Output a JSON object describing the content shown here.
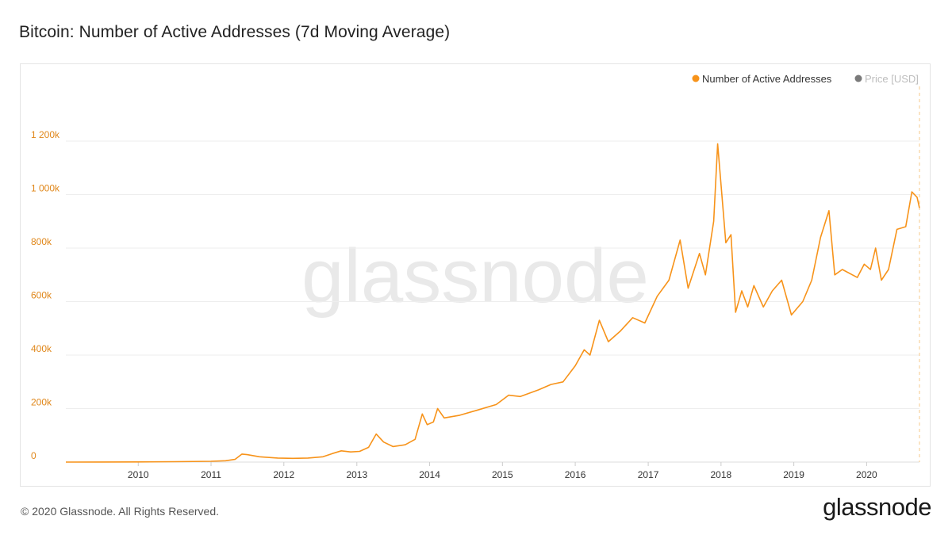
{
  "title": "Bitcoin: Number of Active Addresses (7d Moving Average)",
  "footer": {
    "copyright": "© 2020 Glassnode. All Rights Reserved.",
    "brand": "glassnode"
  },
  "watermark": "glassnode",
  "colors": {
    "series": "#f7931a",
    "axis_label": "#e0871a",
    "grid": "#eeeeee",
    "inactive_legend": "#7a7a7a",
    "inactive_text": "#bdbdbd"
  },
  "chart_data": {
    "type": "line",
    "title": "Bitcoin: Number of Active Addresses (7d Moving Average)",
    "xlabel": "",
    "ylabel": "",
    "ylim": [
      0,
      1200000
    ],
    "xlim": [
      "2009-01-03",
      "2020-09-22"
    ],
    "grid": true,
    "legend_position": "top-right",
    "y_ticks": [
      {
        "value": 0,
        "label": "0"
      },
      {
        "value": 200000,
        "label": "200k"
      },
      {
        "value": 400000,
        "label": "400k"
      },
      {
        "value": 600000,
        "label": "600k"
      },
      {
        "value": 800000,
        "label": "800k"
      },
      {
        "value": 1000000,
        "label": "1 000k"
      },
      {
        "value": 1200000,
        "label": "1 200k"
      }
    ],
    "x_ticks": [
      "2010",
      "2011",
      "2012",
      "2013",
      "2014",
      "2015",
      "2016",
      "2017",
      "2018",
      "2019",
      "2020"
    ],
    "series": [
      {
        "name": "Number of Active Addresses",
        "color": "#f7931a",
        "points": [
          [
            "2009-01-03",
            0
          ],
          [
            "2010-01-01",
            500
          ],
          [
            "2010-07-01",
            1500
          ],
          [
            "2011-01-01",
            3000
          ],
          [
            "2011-03-15",
            5000
          ],
          [
            "2011-05-01",
            10000
          ],
          [
            "2011-06-05",
            30000
          ],
          [
            "2011-07-01",
            28000
          ],
          [
            "2011-09-01",
            20000
          ],
          [
            "2011-12-01",
            15000
          ],
          [
            "2012-02-15",
            14000
          ],
          [
            "2012-05-01",
            15000
          ],
          [
            "2012-07-15",
            20000
          ],
          [
            "2012-09-01",
            32000
          ],
          [
            "2012-10-15",
            42000
          ],
          [
            "2012-12-01",
            38000
          ],
          [
            "2013-01-15",
            40000
          ],
          [
            "2013-03-01",
            55000
          ],
          [
            "2013-04-08",
            105000
          ],
          [
            "2013-05-15",
            75000
          ],
          [
            "2013-07-01",
            58000
          ],
          [
            "2013-09-01",
            65000
          ],
          [
            "2013-10-20",
            85000
          ],
          [
            "2013-11-25",
            180000
          ],
          [
            "2013-12-20",
            140000
          ],
          [
            "2014-01-20",
            150000
          ],
          [
            "2014-02-10",
            200000
          ],
          [
            "2014-03-15",
            165000
          ],
          [
            "2014-06-01",
            175000
          ],
          [
            "2014-09-01",
            195000
          ],
          [
            "2014-12-01",
            215000
          ],
          [
            "2015-02-01",
            250000
          ],
          [
            "2015-04-01",
            245000
          ],
          [
            "2015-07-01",
            270000
          ],
          [
            "2015-09-01",
            290000
          ],
          [
            "2015-11-01",
            300000
          ],
          [
            "2016-01-01",
            360000
          ],
          [
            "2016-02-15",
            420000
          ],
          [
            "2016-03-15",
            400000
          ],
          [
            "2016-05-01",
            530000
          ],
          [
            "2016-06-15",
            450000
          ],
          [
            "2016-08-15",
            490000
          ],
          [
            "2016-10-15",
            540000
          ],
          [
            "2016-12-15",
            520000
          ],
          [
            "2017-02-15",
            620000
          ],
          [
            "2017-04-15",
            680000
          ],
          [
            "2017-06-10",
            830000
          ],
          [
            "2017-07-20",
            650000
          ],
          [
            "2017-09-15",
            780000
          ],
          [
            "2017-10-15",
            700000
          ],
          [
            "2017-11-25",
            900000
          ],
          [
            "2017-12-15",
            1190000
          ],
          [
            "2018-01-05",
            1000000
          ],
          [
            "2018-01-25",
            820000
          ],
          [
            "2018-02-20",
            850000
          ],
          [
            "2018-03-15",
            560000
          ],
          [
            "2018-04-15",
            640000
          ],
          [
            "2018-05-15",
            580000
          ],
          [
            "2018-06-15",
            660000
          ],
          [
            "2018-08-01",
            580000
          ],
          [
            "2018-09-15",
            640000
          ],
          [
            "2018-11-01",
            680000
          ],
          [
            "2018-12-20",
            550000
          ],
          [
            "2019-02-15",
            600000
          ],
          [
            "2019-04-01",
            680000
          ],
          [
            "2019-05-15",
            840000
          ],
          [
            "2019-06-26",
            940000
          ],
          [
            "2019-07-25",
            700000
          ],
          [
            "2019-09-01",
            720000
          ],
          [
            "2019-11-15",
            690000
          ],
          [
            "2019-12-20",
            740000
          ],
          [
            "2020-01-20",
            720000
          ],
          [
            "2020-02-15",
            800000
          ],
          [
            "2020-03-15",
            680000
          ],
          [
            "2020-04-20",
            720000
          ],
          [
            "2020-06-01",
            870000
          ],
          [
            "2020-07-15",
            880000
          ],
          [
            "2020-08-15",
            1010000
          ],
          [
            "2020-09-10",
            990000
          ],
          [
            "2020-09-22",
            950000
          ]
        ]
      },
      {
        "name": "Price [USD]",
        "color": "#7a7a7a",
        "visible": false
      }
    ]
  }
}
